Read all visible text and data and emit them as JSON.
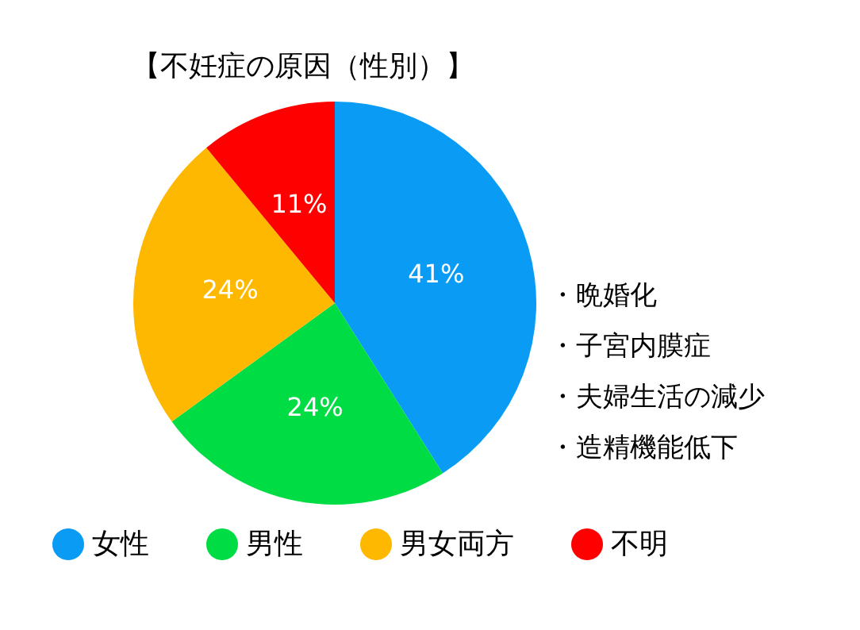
{
  "chart_data": {
    "type": "pie",
    "title": "【不妊症の原因（性別）】",
    "categories": [
      "女性",
      "男性",
      "男女両方",
      "不明"
    ],
    "values": [
      41,
      24,
      24,
      11
    ],
    "value_labels": [
      "41%",
      "24%",
      "24%",
      "11%"
    ],
    "colors": [
      "#0a9cf5",
      "#00dd44",
      "#ffb800",
      "#ff0000"
    ],
    "legend": "bottom",
    "annotations": [
      "・晩婚化",
      "・子宮内膜症",
      "・夫婦生活の減少",
      "・造精機能低下"
    ]
  }
}
